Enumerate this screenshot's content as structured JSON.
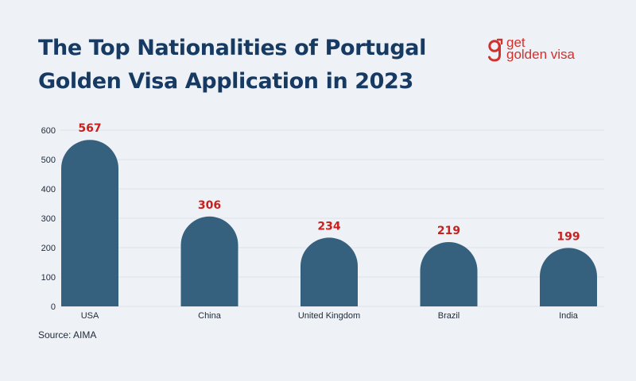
{
  "header": {
    "title_line1": "The Top Nationalities of Portugal",
    "title_line2": "Golden Visa Application in 2023"
  },
  "logo": {
    "line1": "get",
    "line2": "golden visa",
    "color": "#d0312d"
  },
  "source": "Source: AIMA",
  "colors": {
    "bar": "#35617f",
    "value_label": "#c9201e",
    "grid": "#dfe4ea",
    "axis_text": "#1f2a3a",
    "title": "#173a63"
  },
  "chart_data": {
    "type": "bar",
    "categories": [
      "USA",
      "China",
      "United Kingdom",
      "Brazil",
      "India"
    ],
    "values": [
      567,
      306,
      234,
      219,
      199
    ],
    "data_labels": [
      "567",
      "306",
      "234",
      "219",
      "199"
    ],
    "ylim": [
      0,
      600
    ],
    "yticks": [
      0,
      100,
      200,
      300,
      400,
      500,
      600
    ],
    "grid": true,
    "bar_shape": "rounded-top"
  }
}
